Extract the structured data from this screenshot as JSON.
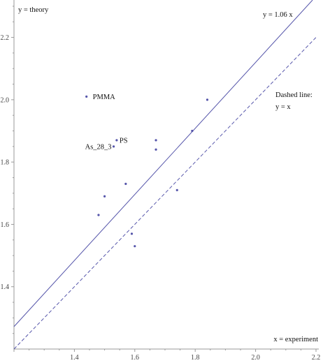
{
  "chart_data": {
    "type": "scatter",
    "xlim": [
      1.2,
      2.2
    ],
    "ylim": [
      1.2,
      2.32
    ],
    "x_ticks": [
      "1.4",
      "1.6",
      "1.8",
      "2.0",
      "2.2"
    ],
    "y_ticks": [
      "1.4",
      "1.6",
      "1.8",
      "2.0",
      "2.2"
    ],
    "x_tick_values": [
      1.4,
      1.6,
      1.8,
      2.0,
      2.2
    ],
    "y_tick_values": [
      1.4,
      1.6,
      1.8,
      2.0,
      2.2
    ],
    "xlabel": "x = experiment",
    "ylabel": "y = theory",
    "grid": false,
    "colors": {
      "series": "#5555aa",
      "axis": "#999999",
      "text": "#111111"
    },
    "lines": [
      {
        "label": "y = 1.06 x",
        "slope": 1.06,
        "style": "solid"
      },
      {
        "label": "y = x",
        "slope": 1.0,
        "style": "dashed"
      }
    ],
    "dashed_legend": {
      "line1": "Dashed line:",
      "line2": "y = x"
    },
    "points": [
      {
        "x": 1.44,
        "y": 2.01,
        "label": "PMMA"
      },
      {
        "x": 1.54,
        "y": 1.87,
        "label": "PS"
      },
      {
        "x": 1.53,
        "y": 1.85,
        "label": "As_28_3"
      },
      {
        "x": 1.57,
        "y": 1.73
      },
      {
        "x": 1.5,
        "y": 1.69
      },
      {
        "x": 1.48,
        "y": 1.63
      },
      {
        "x": 1.59,
        "y": 1.57
      },
      {
        "x": 1.6,
        "y": 1.53
      },
      {
        "x": 1.67,
        "y": 1.87
      },
      {
        "x": 1.67,
        "y": 1.84
      },
      {
        "x": 1.74,
        "y": 1.71
      },
      {
        "x": 1.79,
        "y": 1.9
      },
      {
        "x": 1.84,
        "y": 2.0
      }
    ]
  }
}
